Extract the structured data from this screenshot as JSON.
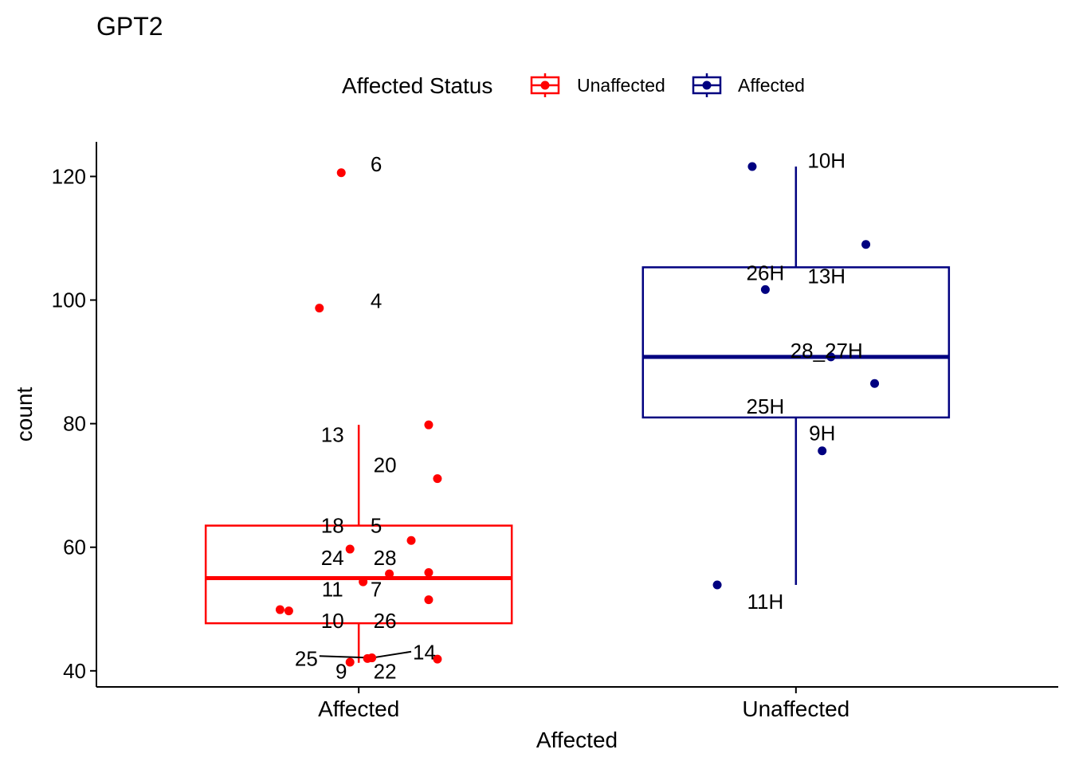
{
  "chart_data": {
    "type": "box",
    "title": "GPT2",
    "xlabel": "Affected",
    "ylabel": "count",
    "ylim": [
      37.4,
      125.6
    ],
    "yticks": [
      40,
      60,
      80,
      100,
      120
    ],
    "categories": [
      "Affected",
      "Unaffected"
    ],
    "legend": {
      "title": "Affected Status",
      "position": "top",
      "entries": [
        {
          "label": "Unaffected",
          "color": "#FF0000"
        },
        {
          "label": "Affected",
          "color": "#000080"
        }
      ]
    },
    "boxes": [
      {
        "category": "Affected",
        "color": "#FF0000",
        "whisker_low": 41.3,
        "q1": 47.7,
        "median": 55.0,
        "q3": 63.5,
        "whisker_high": 79.8
      },
      {
        "category": "Unaffected",
        "color": "#000080",
        "whisker_low": 53.9,
        "q1": 81.0,
        "median": 90.8,
        "q3": 105.3,
        "whisker_high": 121.6
      }
    ],
    "points": [
      {
        "category": "Affected",
        "jitter": -0.04,
        "y": 120.6,
        "label": "6",
        "lx": 0.04,
        "ly": 122.0
      },
      {
        "category": "Affected",
        "jitter": -0.09,
        "y": 98.7,
        "label": "4",
        "lx": 0.04,
        "ly": 99.9
      },
      {
        "category": "Affected",
        "jitter": 0.16,
        "y": 79.8,
        "label": "13",
        "lx": -0.06,
        "ly": 78.2
      },
      {
        "category": "Affected",
        "jitter": 0.18,
        "y": 71.1,
        "label": "20",
        "lx": 0.06,
        "ly": 73.3
      },
      {
        "category": "Affected",
        "jitter": 0.12,
        "y": 61.1,
        "label": "5",
        "lx": 0.04,
        "ly": 63.5
      },
      {
        "category": "Affected",
        "jitter": -0.02,
        "y": 59.7,
        "label": "18",
        "lx": -0.06,
        "ly": 63.5
      },
      {
        "category": "Affected",
        "jitter": 0.16,
        "y": 55.9,
        "label": "28",
        "lx": 0.06,
        "ly": 58.3
      },
      {
        "category": "Affected",
        "jitter": 0.07,
        "y": 55.7,
        "label": "24",
        "lx": -0.06,
        "ly": 58.3
      },
      {
        "category": "Affected",
        "jitter": 0.01,
        "y": 54.4,
        "label": "7",
        "lx": 0.04,
        "ly": 53.2
      },
      {
        "category": "Affected",
        "jitter": 0.16,
        "y": 51.5,
        "label": "11",
        "lx": -0.06,
        "ly": 53.2
      },
      {
        "category": "Affected",
        "jitter": -0.18,
        "y": 49.9,
        "label": "26",
        "lx": 0.06,
        "ly": 48.1
      },
      {
        "category": "Affected",
        "jitter": -0.16,
        "y": 49.7,
        "label": "10",
        "lx": -0.06,
        "ly": 48.1
      },
      {
        "category": "Affected",
        "jitter": 0.18,
        "y": 41.9,
        "label": "14",
        "lx": 0.15,
        "ly": 43.0
      },
      {
        "category": "Affected",
        "jitter": 0.03,
        "y": 42.1,
        "label": "25",
        "lx": -0.12,
        "ly": 42.0
      },
      {
        "category": "Affected",
        "jitter": 0.02,
        "y": 42.0,
        "label": "22",
        "lx": 0.06,
        "ly": 39.9
      },
      {
        "category": "Affected",
        "jitter": -0.02,
        "y": 41.4,
        "label": "9",
        "lx": -0.04,
        "ly": 39.9
      },
      {
        "category": "Unaffected",
        "jitter": -0.1,
        "y": 121.6,
        "label": "10H",
        "lx": 0.07,
        "ly": 122.6
      },
      {
        "category": "Unaffected",
        "jitter": 0.16,
        "y": 109.0,
        "label": "13H",
        "lx": 0.07,
        "ly": 103.9
      },
      {
        "category": "Unaffected",
        "jitter": -0.07,
        "y": 101.7,
        "label": "26H",
        "lx": -0.07,
        "ly": 104.4
      },
      {
        "category": "Unaffected",
        "jitter": 0.08,
        "y": 90.8,
        "label": "28_27H",
        "lx": 0.07,
        "ly": 91.8
      },
      {
        "category": "Unaffected",
        "jitter": 0.18,
        "y": 86.5,
        "label": "25H",
        "lx": -0.07,
        "ly": 82.8
      },
      {
        "category": "Unaffected",
        "jitter": 0.06,
        "y": 75.6,
        "label": "9H",
        "lx": 0.06,
        "ly": 78.5
      },
      {
        "category": "Unaffected",
        "jitter": -0.18,
        "y": 53.9,
        "label": "11H",
        "lx": -0.07,
        "ly": 51.2
      }
    ],
    "label_segments": [
      {
        "category": "Affected",
        "x1": 0.03,
        "y1": 42.1,
        "x2": -0.09,
        "y2": 42.4
      },
      {
        "category": "Affected",
        "x1": 0.03,
        "y1": 42.1,
        "x2": 0.12,
        "y2": 43.1
      }
    ],
    "grid": false
  }
}
